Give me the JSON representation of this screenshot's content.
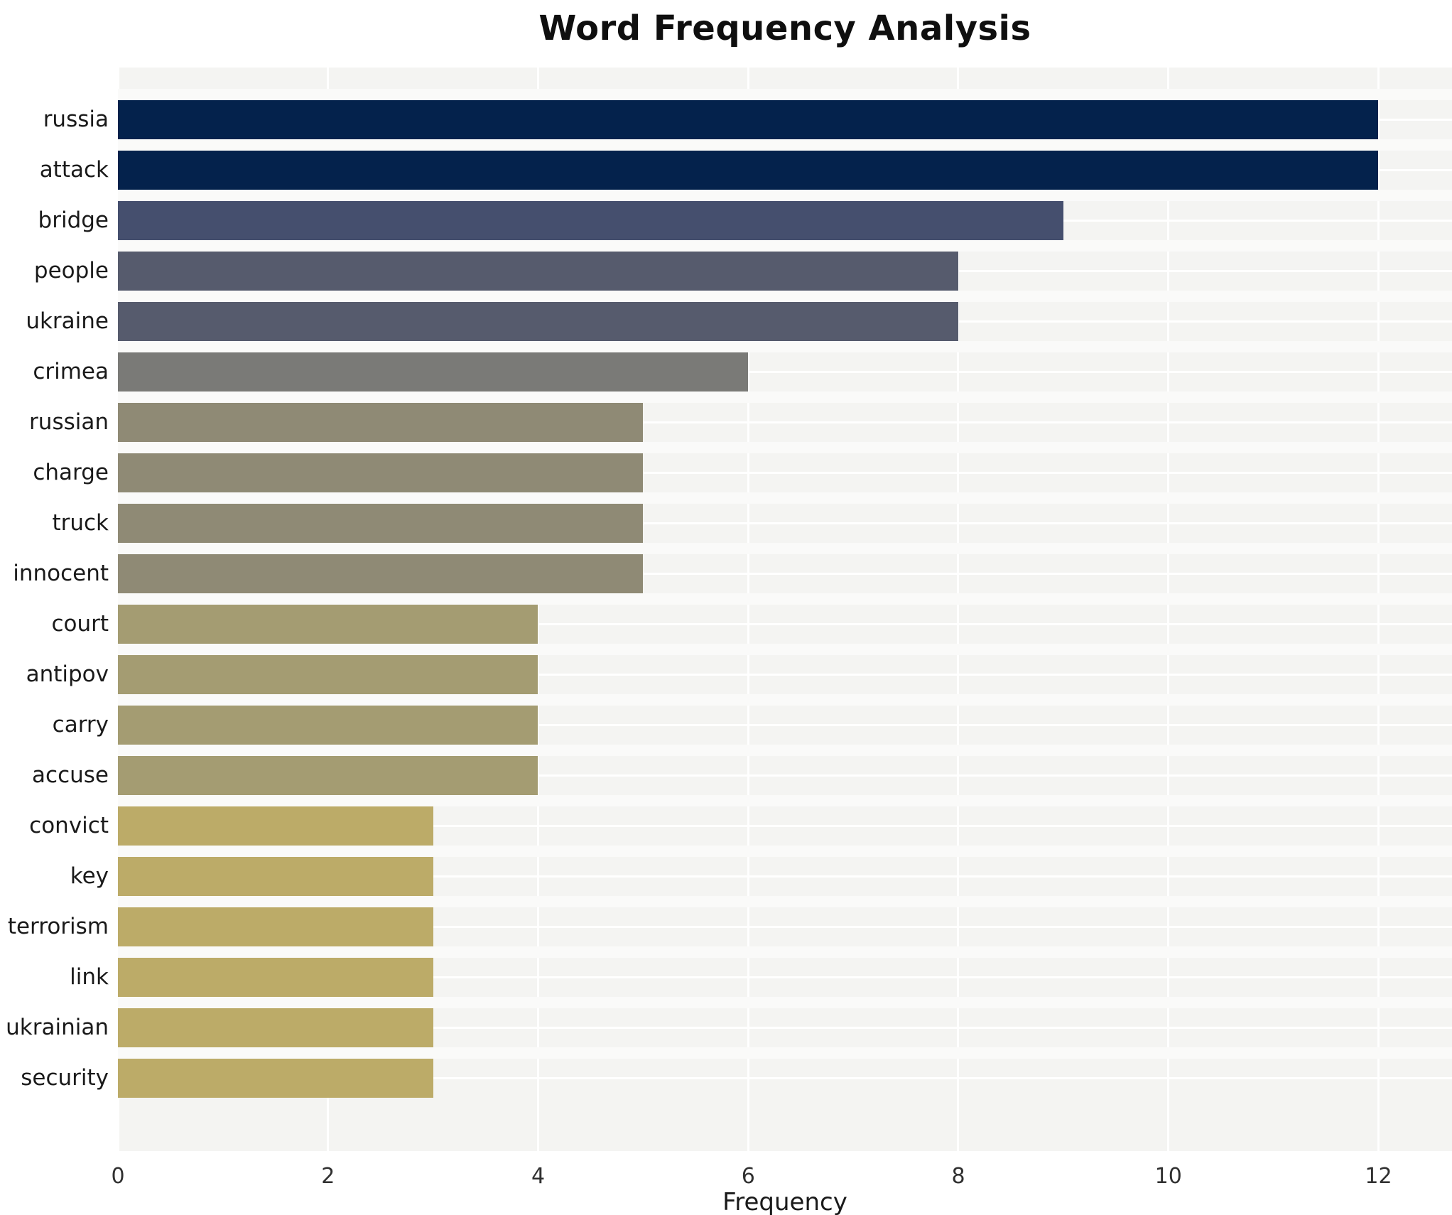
{
  "chart_data": {
    "type": "bar",
    "orientation": "horizontal",
    "title": "Word Frequency Analysis",
    "xlabel": "Frequency",
    "ylabel": "",
    "categories": [
      "russia",
      "attack",
      "bridge",
      "people",
      "ukraine",
      "crimea",
      "russian",
      "charge",
      "truck",
      "innocent",
      "court",
      "antipov",
      "carry",
      "accuse",
      "convict",
      "key",
      "terrorism",
      "link",
      "ukrainian",
      "security"
    ],
    "values": [
      12,
      12,
      9,
      8,
      8,
      6,
      5,
      5,
      5,
      5,
      4,
      4,
      4,
      4,
      3,
      3,
      3,
      3,
      3,
      3
    ],
    "bar_colors": [
      "#04224c",
      "#04224c",
      "#454f6e",
      "#565b6d",
      "#565b6d",
      "#7a7a77",
      "#8f8a75",
      "#8f8a75",
      "#8f8a75",
      "#8f8a75",
      "#a49c72",
      "#a49c72",
      "#a49c72",
      "#a49c72",
      "#bcab68",
      "#bcab68",
      "#bcab68",
      "#bcab68",
      "#bcab68",
      "#bcab68"
    ],
    "xticks": [
      0,
      2,
      4,
      6,
      8,
      10,
      12
    ],
    "xlim": [
      0,
      12.7
    ],
    "grid": true,
    "legend": "none",
    "plot_background": "#f4f4f2",
    "gridline_color": "#ffffff",
    "row_gap_color": "#fafaf9",
    "title_color": "#0f0f0f",
    "label_color": "#1a1a1a",
    "tick_color": "#303030"
  }
}
